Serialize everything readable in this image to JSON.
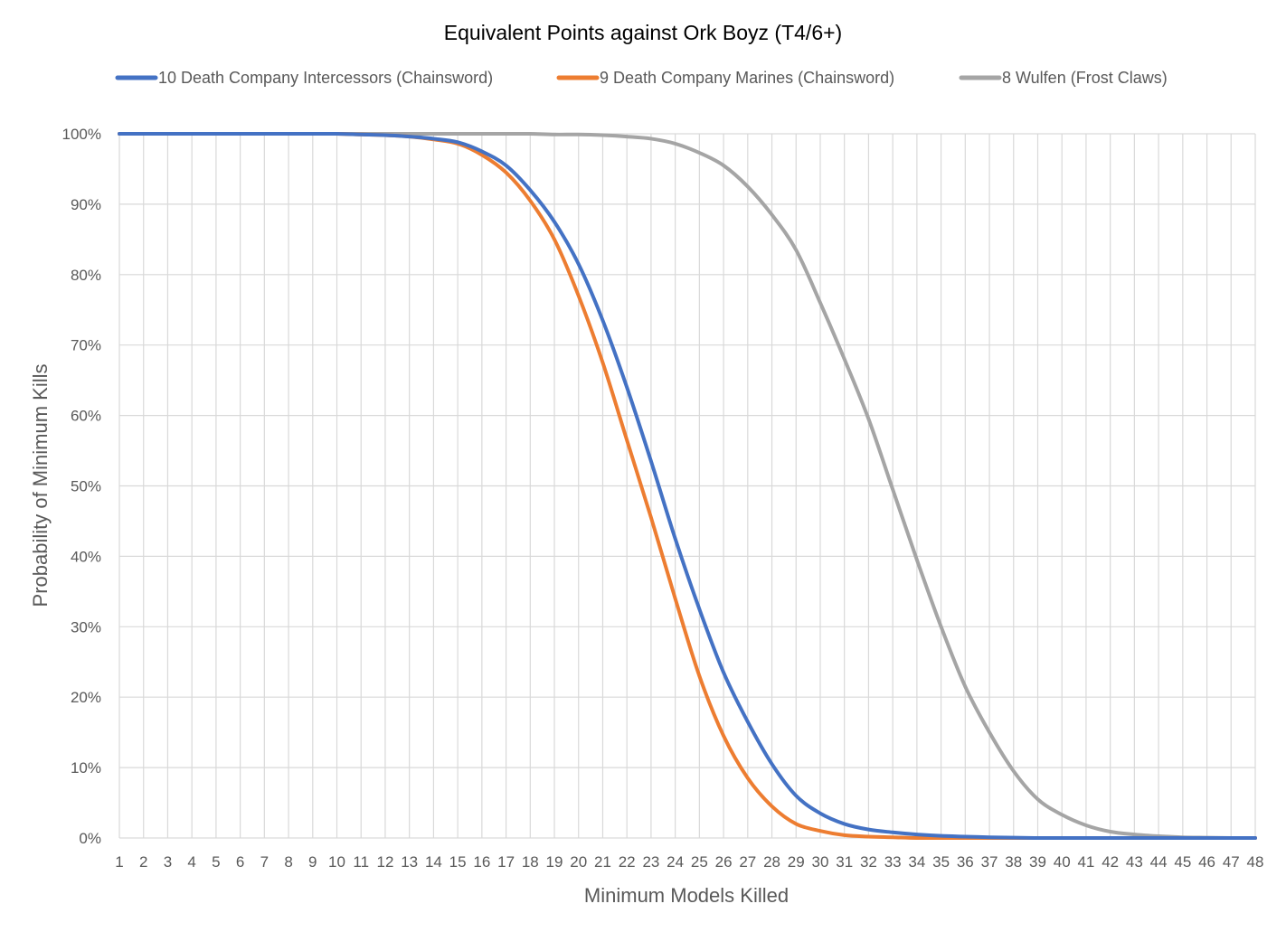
{
  "chart_data": {
    "type": "line",
    "title": "Equivalent Points against Ork Boyz (T4/6+)",
    "xlabel": "Minimum Models Killed",
    "ylabel": "Probability of Minimum Kills",
    "x": [
      1,
      2,
      3,
      4,
      5,
      6,
      7,
      8,
      9,
      10,
      11,
      12,
      13,
      14,
      15,
      16,
      17,
      18,
      19,
      20,
      21,
      22,
      23,
      24,
      25,
      26,
      27,
      28,
      29,
      30,
      31,
      32,
      33,
      34,
      35,
      36,
      37,
      38,
      39,
      40,
      41,
      42,
      43,
      44,
      45,
      46,
      47,
      48
    ],
    "x_tick_labels": [
      "1",
      "2",
      "3",
      "4",
      "5",
      "6",
      "7",
      "8",
      "9",
      "10",
      "11",
      "12",
      "13",
      "14",
      "15",
      "16",
      "17",
      "18",
      "19",
      "20",
      "21",
      "22",
      "23",
      "24",
      "25",
      "26",
      "27",
      "28",
      "29",
      "30",
      "31",
      "32",
      "33",
      "34",
      "35",
      "36",
      "37",
      "38",
      "39",
      "40",
      "41",
      "42",
      "43",
      "44",
      "45",
      "46",
      "47",
      "48"
    ],
    "y_tick_labels": [
      "0%",
      "10%",
      "20%",
      "30%",
      "40%",
      "50%",
      "60%",
      "70%",
      "80%",
      "90%",
      "100%"
    ],
    "ylim": [
      0,
      100
    ],
    "grid": true,
    "legend_position": "top",
    "series": [
      {
        "name": "10 Death Company Intercessors (Chainsword)",
        "color": "#4472C4",
        "values": [
          100,
          100,
          100,
          100,
          100,
          100,
          100,
          100,
          100,
          100,
          99.9,
          99.8,
          99.6,
          99.3,
          98.8,
          97.5,
          95.5,
          92,
          87.5,
          81.5,
          73.5,
          64,
          53.5,
          42.5,
          32.5,
          23.5,
          16.5,
          10.5,
          6,
          3.5,
          2,
          1.2,
          0.8,
          0.5,
          0.3,
          0.2,
          0.1,
          0.05,
          0,
          0,
          0,
          0,
          0,
          0,
          0,
          0,
          0,
          0
        ]
      },
      {
        "name": "9 Death Company Marines (Chainsword)",
        "color": "#ED7D31",
        "values": [
          100,
          100,
          100,
          100,
          100,
          100,
          100,
          100,
          100,
          100,
          99.9,
          99.8,
          99.6,
          99.2,
          98.6,
          97,
          94.5,
          90.5,
          85,
          77,
          67.5,
          56.5,
          45.5,
          34,
          23,
          14.5,
          8.5,
          4.5,
          2,
          1,
          0.4,
          0.2,
          0.1,
          0,
          0,
          0,
          0,
          0,
          0,
          0,
          0,
          0,
          0,
          0,
          0,
          0,
          0,
          0
        ]
      },
      {
        "name": "8 Wulfen (Frost Claws)",
        "color": "#A5A5A5",
        "values": [
          100,
          100,
          100,
          100,
          100,
          100,
          100,
          100,
          100,
          100,
          100,
          100,
          100,
          100,
          100,
          100,
          100,
          100,
          99.9,
          99.9,
          99.8,
          99.6,
          99.3,
          98.6,
          97.3,
          95.5,
          92.5,
          88.5,
          83.5,
          76,
          68,
          59.5,
          49.5,
          39.5,
          30,
          21.5,
          15,
          9.5,
          5.5,
          3.3,
          1.8,
          0.9,
          0.5,
          0.25,
          0.1,
          0.05,
          0,
          0
        ]
      }
    ]
  }
}
